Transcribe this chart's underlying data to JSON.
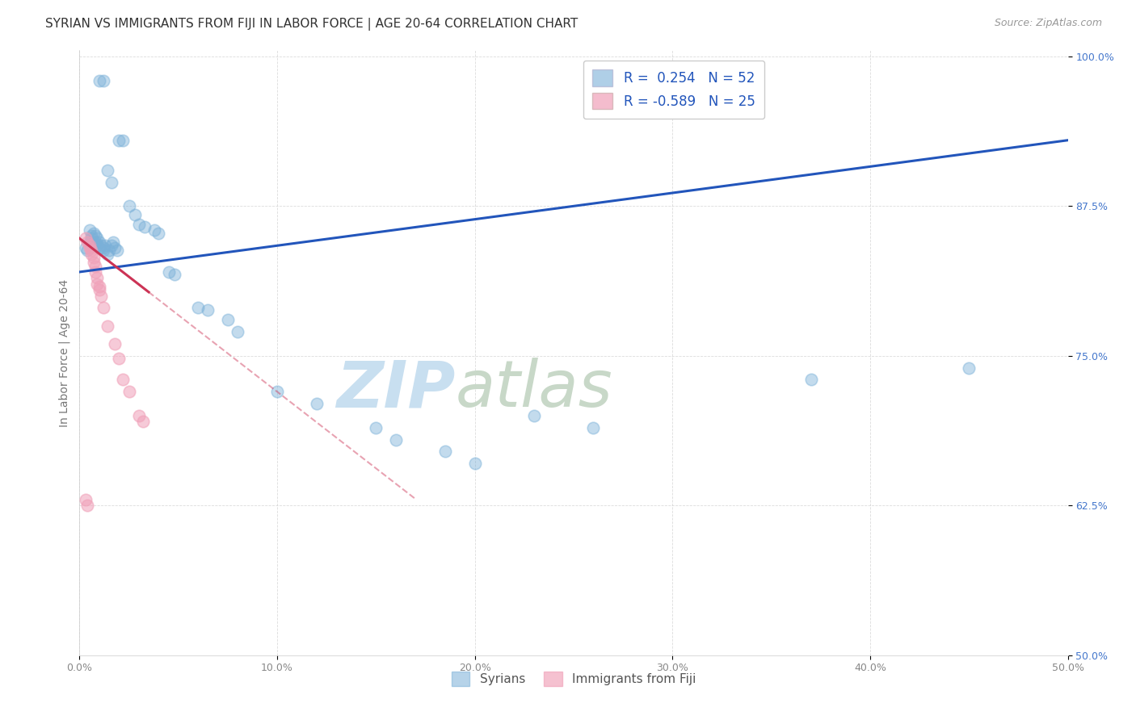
{
  "title": "SYRIAN VS IMMIGRANTS FROM FIJI IN LABOR FORCE | AGE 20-64 CORRELATION CHART",
  "source": "Source: ZipAtlas.com",
  "ylabel": "In Labor Force | Age 20-64",
  "xlim": [
    0.0,
    0.5
  ],
  "ylim": [
    0.5,
    1.005
  ],
  "xtick_labels": [
    "0.0%",
    "10.0%",
    "20.0%",
    "30.0%",
    "40.0%",
    "50.0%"
  ],
  "xtick_vals": [
    0.0,
    0.1,
    0.2,
    0.3,
    0.4,
    0.5
  ],
  "ytick_labels": [
    "50.0%",
    "62.5%",
    "75.0%",
    "87.5%",
    "100.0%"
  ],
  "ytick_vals": [
    0.5,
    0.625,
    0.75,
    0.875,
    1.0
  ],
  "legend_entries": [
    {
      "label": "R =  0.254   N = 52",
      "color": "#a8c4e0"
    },
    {
      "label": "R = -0.589   N = 25",
      "color": "#f4a0b0"
    }
  ],
  "syrian_x": [
    0.01,
    0.012,
    0.02,
    0.022,
    0.014,
    0.016,
    0.003,
    0.004,
    0.005,
    0.005,
    0.006,
    0.006,
    0.007,
    0.007,
    0.008,
    0.008,
    0.009,
    0.009,
    0.01,
    0.01,
    0.011,
    0.012,
    0.012,
    0.013,
    0.014,
    0.015,
    0.016,
    0.017,
    0.018,
    0.019,
    0.025,
    0.028,
    0.03,
    0.033,
    0.038,
    0.04,
    0.045,
    0.048,
    0.06,
    0.065,
    0.075,
    0.08,
    0.1,
    0.12,
    0.15,
    0.16,
    0.185,
    0.2,
    0.23,
    0.26,
    0.37,
    0.45
  ],
  "syrian_y": [
    0.98,
    0.98,
    0.93,
    0.93,
    0.905,
    0.895,
    0.84,
    0.838,
    0.845,
    0.855,
    0.85,
    0.848,
    0.852,
    0.845,
    0.85,
    0.845,
    0.842,
    0.848,
    0.84,
    0.845,
    0.842,
    0.838,
    0.84,
    0.842,
    0.835,
    0.838,
    0.842,
    0.845,
    0.84,
    0.838,
    0.875,
    0.868,
    0.86,
    0.858,
    0.855,
    0.852,
    0.82,
    0.818,
    0.79,
    0.788,
    0.78,
    0.77,
    0.72,
    0.71,
    0.69,
    0.68,
    0.67,
    0.66,
    0.7,
    0.69,
    0.73,
    0.74
  ],
  "fiji_x": [
    0.003,
    0.004,
    0.005,
    0.005,
    0.006,
    0.006,
    0.007,
    0.007,
    0.008,
    0.008,
    0.009,
    0.009,
    0.01,
    0.01,
    0.011,
    0.012,
    0.014,
    0.018,
    0.02,
    0.022,
    0.025,
    0.03,
    0.032,
    0.003,
    0.004
  ],
  "fiji_y": [
    0.848,
    0.845,
    0.842,
    0.84,
    0.838,
    0.835,
    0.832,
    0.828,
    0.825,
    0.82,
    0.815,
    0.81,
    0.808,
    0.805,
    0.8,
    0.79,
    0.775,
    0.76,
    0.748,
    0.73,
    0.72,
    0.7,
    0.695,
    0.63,
    0.625
  ],
  "watermark_zip": "ZIP",
  "watermark_atlas": "atlas",
  "watermark_color_zip": "#c8dff0",
  "watermark_color_atlas": "#c8d8c8",
  "bg_color": "#ffffff",
  "grid_color": "#cccccc",
  "blue_scatter_color": "#7ab0d8",
  "pink_scatter_color": "#f0a0b8",
  "blue_line_color": "#2255bb",
  "pink_line_color": "#cc3355",
  "title_fontsize": 11,
  "axis_label_fontsize": 10,
  "tick_fontsize": 9,
  "blue_trend_x0": 0.0,
  "blue_trend_y0": 0.82,
  "blue_trend_x1": 0.5,
  "blue_trend_y1": 0.93,
  "pink_trend_x0": 0.0,
  "pink_trend_y0": 0.848,
  "pink_trend_x1": 0.1,
  "pink_trend_y1": 0.72
}
